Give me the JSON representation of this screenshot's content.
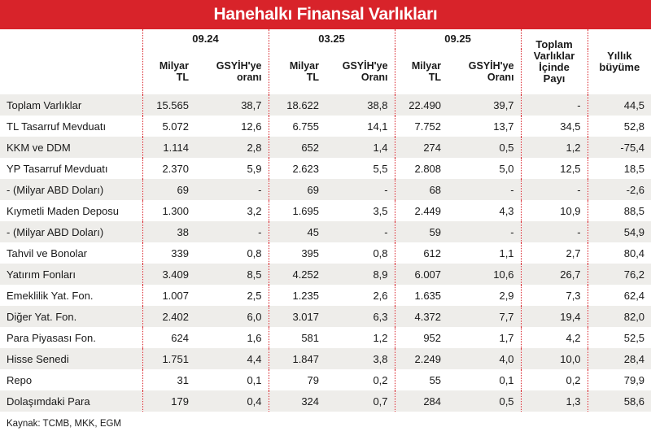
{
  "title": "Hanehalkı Finansal Varlıkları",
  "header": {
    "periods": [
      "09.24",
      "03.25",
      "09.25"
    ],
    "sub": [
      "Milyar TL",
      "GSYİH'ye oranı",
      "Milyar TL",
      "GSYİH'ye Oranı",
      "Milyar TL",
      "GSYİH'ye Oranı"
    ],
    "share": "Toplam Varlıklar İçinde Payı",
    "growth": "Yıllık büyüme"
  },
  "rows": [
    [
      "Toplam Varlıklar",
      "15.565",
      "38,7",
      "18.622",
      "38,8",
      "22.490",
      "39,7",
      "-",
      "44,5"
    ],
    [
      "TL Tasarruf Mevduatı",
      "5.072",
      "12,6",
      "6.755",
      "14,1",
      "7.752",
      "13,7",
      "34,5",
      "52,8"
    ],
    [
      "KKM ve DDM",
      "1.114",
      "2,8",
      "652",
      "1,4",
      "274",
      "0,5",
      "1,2",
      "-75,4"
    ],
    [
      "YP Tasarruf Mevduatı",
      "2.370",
      "5,9",
      "2.623",
      "5,5",
      "2.808",
      "5,0",
      "12,5",
      "18,5"
    ],
    [
      "- (Milyar ABD Doları)",
      "69",
      "-",
      "69",
      "-",
      "68",
      "-",
      "-",
      "-2,6"
    ],
    [
      "Kıymetli Maden Deposu",
      "1.300",
      "3,2",
      "1.695",
      "3,5",
      "2.449",
      "4,3",
      "10,9",
      "88,5"
    ],
    [
      "- (Milyar ABD Doları)",
      "38",
      "-",
      "45",
      "-",
      "59",
      "-",
      "-",
      "54,9"
    ],
    [
      "Tahvil ve Bonolar",
      "339",
      "0,8",
      "395",
      "0,8",
      "612",
      "1,1",
      "2,7",
      "80,4"
    ],
    [
      "Yatırım Fonları",
      "3.409",
      "8,5",
      "4.252",
      "8,9",
      "6.007",
      "10,6",
      "26,7",
      "76,2"
    ],
    [
      "Emeklilik Yat. Fon.",
      "1.007",
      "2,5",
      "1.235",
      "2,6",
      "1.635",
      "2,9",
      "7,3",
      "62,4"
    ],
    [
      "Diğer Yat. Fon.",
      "2.402",
      "6,0",
      "3.017",
      "6,3",
      "4.372",
      "7,7",
      "19,4",
      "82,0"
    ],
    [
      "Para Piyasası Fon.",
      "624",
      "1,6",
      "581",
      "1,2",
      "952",
      "1,7",
      "4,2",
      "52,5"
    ],
    [
      "Hisse Senedi",
      "1.751",
      "4,4",
      "1.847",
      "3,8",
      "2.249",
      "4,0",
      "10,0",
      "28,4"
    ],
    [
      "Repo",
      "31",
      "0,1",
      "79",
      "0,2",
      "55",
      "0,1",
      "0,2",
      "79,9"
    ],
    [
      "Dolaşımdaki Para",
      "179",
      "0,4",
      "324",
      "0,7",
      "284",
      "0,5",
      "1,3",
      "58,6"
    ]
  ],
  "source": "Kaynak: TCMB, MKK, EGM"
}
